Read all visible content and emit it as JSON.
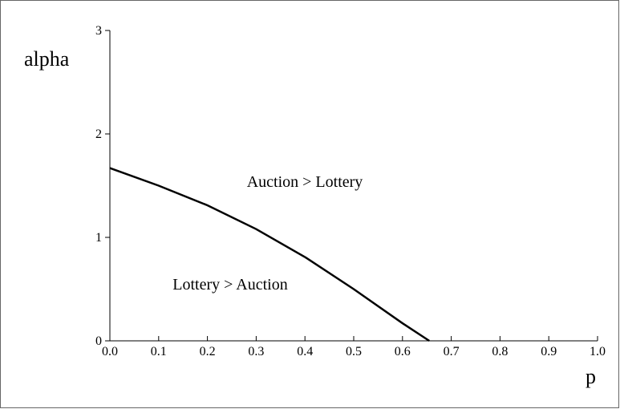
{
  "chart_data": {
    "type": "line",
    "x_label": "p",
    "y_label": "alpha",
    "x": [
      0,
      0.1,
      0.2,
      0.3,
      0.4,
      0.5,
      0.6,
      0.655
    ],
    "series": [
      {
        "color": "#000000",
        "values": [
          1.67,
          1.5,
          1.31,
          1.08,
          0.81,
          0.5,
          0.17,
          0
        ]
      }
    ],
    "xlim": [
      0,
      1
    ],
    "ylim": [
      0,
      3
    ],
    "xticks": [
      {
        "value": 0,
        "label": "0.0"
      },
      0.1,
      0.2,
      0.3,
      0.4,
      0.5,
      0.6,
      0.7,
      0.8,
      0.9,
      {
        "value": 1,
        "label": "1.0"
      }
    ],
    "yticks": [
      0,
      1,
      2,
      3
    ],
    "annotations": [
      {
        "text": "Auction > Lottery"
      },
      {
        "text": "Lottery > Auction"
      }
    ]
  }
}
